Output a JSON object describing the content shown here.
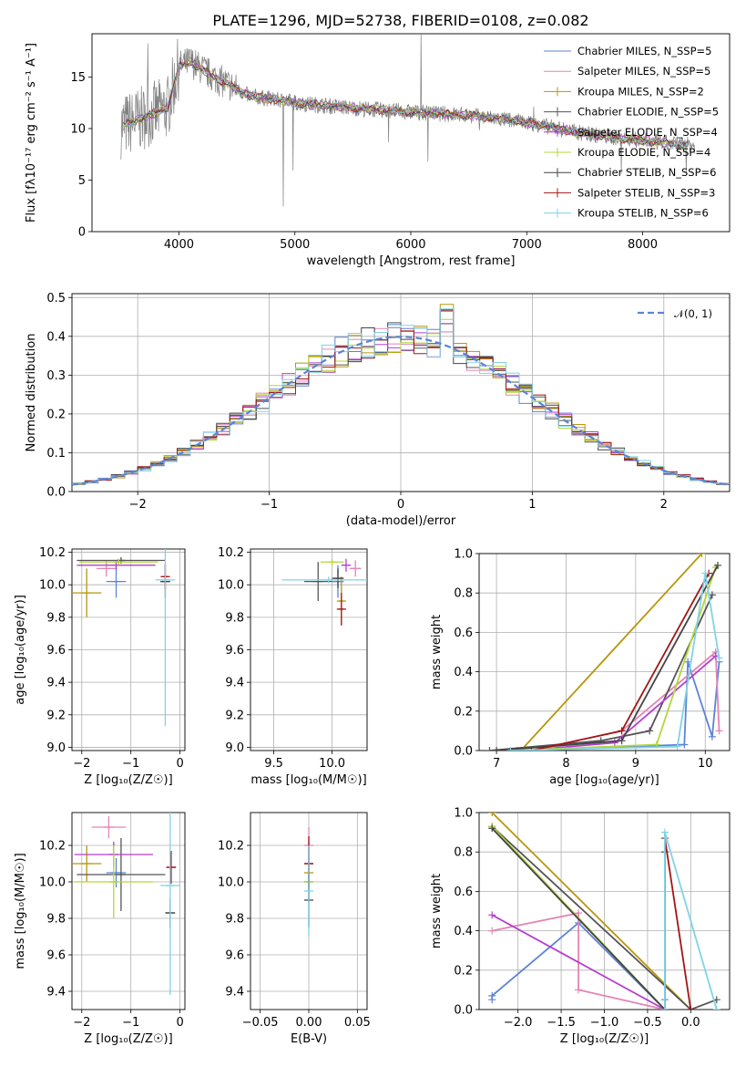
{
  "title": "PLATE=1296, MJD=52738, FIBERID=0108, z=0.082",
  "colors": [
    "#5b84d6",
    "#e384b6",
    "#b8960c",
    "#555555",
    "#b53fcc",
    "#b4d63a",
    "#444444",
    "#a31515",
    "#7fd3e6"
  ],
  "chart_data": [
    {
      "type": "line",
      "title": "PLATE=1296, MJD=52738, FIBERID=0108, z=0.082",
      "xlabel": "wavelength [Angstrom, rest frame]",
      "ylabel": "Flux [fλ10⁻¹⁷ erg cm⁻² s⁻¹ A⁻¹]",
      "xlim": [
        3250,
        8750
      ],
      "ylim": [
        0,
        19.2
      ],
      "xticks": [
        "4000",
        "5000",
        "6000",
        "7000",
        "8000"
      ],
      "yticks": [
        "0",
        "5",
        "10",
        "15"
      ],
      "legend": "upper right",
      "series": [
        {
          "name": "Chabrier MILES, N_SSP=5"
        },
        {
          "name": "Salpeter MILES, N_SSP=5"
        },
        {
          "name": "Kroupa MILES, N_SSP=2"
        },
        {
          "name": "Chabrier ELODIE, N_SSP=5"
        },
        {
          "name": "Salpeter ELODIE, N_SSP=4"
        },
        {
          "name": "Kroupa ELODIE, N_SSP=4"
        },
        {
          "name": "Chabrier STELIB, N_SSP=6"
        },
        {
          "name": "Salpeter STELIB, N_SSP=3"
        },
        {
          "name": "Kroupa STELIB, N_SSP=6"
        }
      ],
      "continuum": {
        "x": [
          3500,
          3900,
          4000,
          4100,
          4300,
          4600,
          5000,
          5500,
          6000,
          6500,
          7000,
          7500,
          8000,
          8500
        ],
        "y": [
          10.2,
          12.0,
          16.0,
          16.5,
          15.0,
          13.2,
          12.5,
          12.0,
          11.6,
          11.3,
          10.6,
          9.5,
          8.8,
          8.3
        ]
      }
    },
    {
      "type": "step",
      "xlabel": "(data-model)/error",
      "ylabel": "Normed distribution",
      "xlim": [
        -2.5,
        2.5
      ],
      "ylim": [
        0,
        0.51
      ],
      "xticks": [
        "−2",
        "−1",
        "0",
        "1",
        "2"
      ],
      "yticks": [
        "0.0",
        "0.1",
        "0.2",
        "0.3",
        "0.4",
        "0.5"
      ],
      "legend": "upper right",
      "legend_label": "𝒩(0, 1)",
      "reference": {
        "name": "𝒩(0, 1)",
        "mean": 0,
        "sigma": 1
      }
    },
    {
      "type": "scatter",
      "xlabel": "Z [log₁₀(Z/Z☉)]",
      "ylabel": "age  [log₁₀(age/yr)]",
      "xlim": [
        -2.2,
        0.1
      ],
      "ylim": [
        8.98,
        10.22
      ],
      "xticks": [
        "−2",
        "−1",
        "0"
      ],
      "yticks": [
        "9.0",
        "9.2",
        "9.4",
        "9.6",
        "9.8",
        "10.0",
        "10.2"
      ],
      "points": [
        {
          "x": -1.3,
          "y": 10.02,
          "xerr": 0.2,
          "yerr": 0.1
        },
        {
          "x": -1.5,
          "y": 10.1,
          "xerr": 0.2,
          "yerr": 0.05
        },
        {
          "x": -1.9,
          "y": 9.95,
          "xerr": 0.3,
          "yerr": 0.15
        },
        {
          "x": -1.2,
          "y": 10.15,
          "xerr": 0.9,
          "yerr": 0.02
        },
        {
          "x": -1.3,
          "y": 10.12,
          "xerr": 0.8,
          "yerr": 0.03
        },
        {
          "x": -1.25,
          "y": 10.14,
          "xerr": 0.8,
          "yerr": 0.02
        },
        {
          "x": -0.3,
          "y": 10.02,
          "xerr": 0.1,
          "yerr": 0.1
        },
        {
          "x": -0.3,
          "y": 10.05,
          "xerr": 0.05,
          "yerr": 0.08
        },
        {
          "x": -0.3,
          "y": 10.03,
          "xerr": 0.2,
          "yerr": 0.9
        }
      ]
    },
    {
      "type": "scatter",
      "xlabel": "mass [log₁₀(M/M☉)]",
      "xlim": [
        9.3,
        10.3
      ],
      "ylim": [
        8.98,
        10.22
      ],
      "xticks": [
        "9.5",
        "10.0"
      ],
      "yticks": [
        "9.0",
        "9.2",
        "9.4",
        "9.6",
        "9.8",
        "10.0",
        "10.2"
      ],
      "points": [
        {
          "x": 10.05,
          "y": 10.02,
          "xerr": 0.05,
          "yerr": 0.1
        },
        {
          "x": 10.2,
          "y": 10.1,
          "xerr": 0.05,
          "yerr": 0.05
        },
        {
          "x": 10.08,
          "y": 9.9,
          "xerr": 0.02,
          "yerr": 0.15
        },
        {
          "x": 9.88,
          "y": 10.02,
          "xerr": 0.12,
          "yerr": 0.12
        },
        {
          "x": 10.12,
          "y": 10.12,
          "xerr": 0.04,
          "yerr": 0.04
        },
        {
          "x": 10.0,
          "y": 10.14,
          "xerr": 0.1,
          "yerr": 0.02
        },
        {
          "x": 10.05,
          "y": 10.04,
          "xerr": 0.05,
          "yerr": 0.06
        },
        {
          "x": 10.08,
          "y": 9.85,
          "xerr": 0.02,
          "yerr": 0.1
        },
        {
          "x": 9.97,
          "y": 10.03,
          "xerr": 0.4,
          "yerr": 0.02
        }
      ]
    },
    {
      "type": "line",
      "xlabel": "age  [log₁₀(age/yr)]",
      "ylabel": "mass weight",
      "xlim": [
        6.75,
        10.35
      ],
      "ylim": [
        0,
        1.0
      ],
      "xticks": [
        "7",
        "8",
        "9",
        "10"
      ],
      "yticks": [
        "0.0",
        "0.2",
        "0.4",
        "0.6",
        "0.8",
        "1.0"
      ],
      "series": [
        {
          "x": [
            7.3,
            9.7,
            9.75,
            10.1,
            10.2
          ],
          "y": [
            0.0,
            0.03,
            0.45,
            0.07,
            0.45
          ]
        },
        {
          "x": [
            7.5,
            8.8,
            10.15,
            10.2
          ],
          "y": [
            0.0,
            0.1,
            0.5,
            0.1
          ]
        },
        {
          "x": [
            7.35,
            9.95
          ],
          "y": [
            0.0,
            1.0
          ]
        },
        {
          "x": [
            6.9,
            8.5,
            9.2,
            10.1
          ],
          "y": [
            0.0,
            0.05,
            0.1,
            0.79
          ]
        },
        {
          "x": [
            7.4,
            8.7,
            10.15
          ],
          "y": [
            0.0,
            0.04,
            0.48
          ]
        },
        {
          "x": [
            7.2,
            9.3,
            10.15
          ],
          "y": [
            0.0,
            0.03,
            0.93
          ]
        },
        {
          "x": [
            7.0,
            8.8,
            10.18
          ],
          "y": [
            0.0,
            0.05,
            0.94
          ]
        },
        {
          "x": [
            7.5,
            8.8,
            10.05
          ],
          "y": [
            0.0,
            0.1,
            0.9
          ]
        },
        {
          "x": [
            7.2,
            9.6,
            10.0,
            10.2
          ],
          "y": [
            0.0,
            0.02,
            0.9,
            0.47
          ]
        }
      ]
    },
    {
      "type": "scatter",
      "xlabel": "Z [log₁₀(Z/Z☉)]",
      "ylabel": "mass [log₁₀(M/M☉)]",
      "xlim": [
        -2.2,
        0.1
      ],
      "ylim": [
        9.3,
        10.38
      ],
      "xticks": [
        "−2",
        "−1",
        "0"
      ],
      "yticks": [
        "9.4",
        "9.6",
        "9.8",
        "10.0",
        "10.2"
      ],
      "points": [
        {
          "x": -1.3,
          "y": 10.05,
          "xerr": 0.2,
          "yerr": 0.08
        },
        {
          "x": -1.45,
          "y": 10.3,
          "xerr": 0.35,
          "yerr": 0.06
        },
        {
          "x": -1.9,
          "y": 10.1,
          "xerr": 0.3,
          "yerr": 0.1
        },
        {
          "x": -1.2,
          "y": 10.04,
          "xerr": 0.9,
          "yerr": 0.2
        },
        {
          "x": -1.35,
          "y": 10.15,
          "xerr": 0.8,
          "yerr": 0.07
        },
        {
          "x": -1.35,
          "y": 10.0,
          "xerr": 0.8,
          "yerr": 0.2
        },
        {
          "x": -0.2,
          "y": 9.83,
          "xerr": 0.1,
          "yerr": 0.08
        },
        {
          "x": -0.18,
          "y": 10.08,
          "xerr": 0.1,
          "yerr": 0.09
        },
        {
          "x": -0.2,
          "y": 9.98,
          "xerr": 0.2,
          "yerr": 0.6
        }
      ]
    },
    {
      "type": "scatter",
      "xlabel": "E(B-V)",
      "xlim": [
        -0.06,
        0.06
      ],
      "ylim": [
        9.3,
        10.38
      ],
      "xticks": [
        "−0.05",
        "0.00",
        "0.05"
      ],
      "yticks": [
        "9.4",
        "9.6",
        "9.8",
        "10.0",
        "10.2"
      ],
      "points": [
        {
          "x": 0.0,
          "y": 10.1,
          "xerr": 0.0,
          "yerr": 0.12
        },
        {
          "x": 0.0,
          "y": 10.2,
          "xerr": 0.0,
          "yerr": 0.1
        },
        {
          "x": 0.0,
          "y": 10.05,
          "xerr": 0.0,
          "yerr": 0.1
        },
        {
          "x": 0.0,
          "y": 10.0,
          "xerr": 0.0,
          "yerr": 0.1
        },
        {
          "x": 0.0,
          "y": 10.1,
          "xerr": 0.0,
          "yerr": 0.1
        },
        {
          "x": 0.0,
          "y": 10.0,
          "xerr": 0.0,
          "yerr": 0.1
        },
        {
          "x": 0.0,
          "y": 9.9,
          "xerr": 0.0,
          "yerr": 0.15
        },
        {
          "x": 0.0,
          "y": 10.1,
          "xerr": 0.0,
          "yerr": 0.15
        },
        {
          "x": 0.0,
          "y": 9.95,
          "xerr": 0.0,
          "yerr": 0.25
        }
      ]
    },
    {
      "type": "line",
      "xlabel": "Z [log₁₀(Z/Z☉)]",
      "ylabel": "mass weight",
      "xlim": [
        -2.45,
        0.45
      ],
      "ylim": [
        0,
        1.0
      ],
      "xticks": [
        "−2.0",
        "−1.5",
        "−1.0",
        "−0.5",
        "0.0"
      ],
      "yticks": [
        "0.0",
        "0.2",
        "0.4",
        "0.6",
        "0.8",
        "1.0"
      ],
      "series": [
        {
          "x": [
            -2.3,
            -2.3,
            -1.3,
            -0.3,
            -0.3
          ],
          "y": [
            0.05,
            0.07,
            0.44,
            0.0,
            0.05
          ]
        },
        {
          "x": [
            -2.3,
            -1.3,
            -1.3,
            -0.3
          ],
          "y": [
            0.4,
            0.49,
            0.1,
            0.0
          ]
        },
        {
          "x": [
            -2.3,
            0.0
          ],
          "y": [
            1.0,
            0.0
          ]
        },
        {
          "x": [
            -2.3,
            0.0,
            0.3
          ],
          "y": [
            0.93,
            0.0,
            0.05
          ]
        },
        {
          "x": [
            -2.3,
            -0.3
          ],
          "y": [
            0.48,
            0.0
          ]
        },
        {
          "x": [
            -2.3,
            -0.3
          ],
          "y": [
            0.93,
            0.0
          ]
        },
        {
          "x": [
            -2.3,
            -0.3,
            -0.3
          ],
          "y": [
            0.92,
            0.0,
            0.8
          ]
        },
        {
          "x": [
            -0.3,
            -0.3,
            0.0
          ],
          "y": [
            0.0,
            0.87,
            0.0
          ]
        },
        {
          "x": [
            -0.3,
            -0.3,
            0.3
          ],
          "y": [
            0.0,
            0.9,
            0.0
          ]
        }
      ]
    }
  ]
}
